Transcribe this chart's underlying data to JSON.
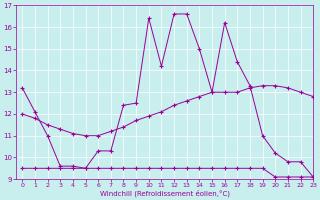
{
  "xlabel": "Windchill (Refroidissement éolien,°C)",
  "bg_color": "#c8eeed",
  "line_color": "#990099",
  "grid_color": "#ffffff",
  "xlim": [
    -0.5,
    23
  ],
  "ylim": [
    9,
    17
  ],
  "xticks": [
    0,
    1,
    2,
    3,
    4,
    5,
    6,
    7,
    8,
    9,
    10,
    11,
    12,
    13,
    14,
    15,
    16,
    17,
    18,
    19,
    20,
    21,
    22,
    23
  ],
  "yticks": [
    9,
    10,
    11,
    12,
    13,
    14,
    15,
    16,
    17
  ],
  "line1_x": [
    0,
    1,
    2,
    3,
    4,
    5,
    6,
    7,
    8,
    9,
    10,
    11,
    12,
    13,
    14,
    15,
    16,
    17,
    18,
    19,
    20,
    21,
    22,
    23
  ],
  "line1_y": [
    13.2,
    12.1,
    11.0,
    9.6,
    9.6,
    9.5,
    10.3,
    10.3,
    12.4,
    12.5,
    16.4,
    14.2,
    16.6,
    16.6,
    15.0,
    13.0,
    16.2,
    14.4,
    13.3,
    11.0,
    10.2,
    9.8,
    9.8,
    9.1
  ],
  "line2_x": [
    0,
    1,
    2,
    3,
    4,
    5,
    6,
    7,
    8,
    9,
    10,
    11,
    12,
    13,
    14,
    15,
    16,
    17,
    18,
    19,
    20,
    21,
    22,
    23
  ],
  "line2_y": [
    12.0,
    11.8,
    11.5,
    11.3,
    11.1,
    11.0,
    11.0,
    11.2,
    11.4,
    11.7,
    11.9,
    12.1,
    12.4,
    12.6,
    12.8,
    13.0,
    13.0,
    13.0,
    13.2,
    13.3,
    13.3,
    13.2,
    13.0,
    12.8
  ],
  "line3_x": [
    0,
    1,
    2,
    3,
    4,
    5,
    6,
    7,
    8,
    9,
    10,
    11,
    12,
    13,
    14,
    15,
    16,
    17,
    18,
    19,
    20,
    21,
    22,
    23
  ],
  "line3_y": [
    9.5,
    9.5,
    9.5,
    9.5,
    9.5,
    9.5,
    9.5,
    9.5,
    9.5,
    9.5,
    9.5,
    9.5,
    9.5,
    9.5,
    9.5,
    9.5,
    9.5,
    9.5,
    9.5,
    9.5,
    9.1,
    9.1,
    9.1,
    9.1
  ]
}
